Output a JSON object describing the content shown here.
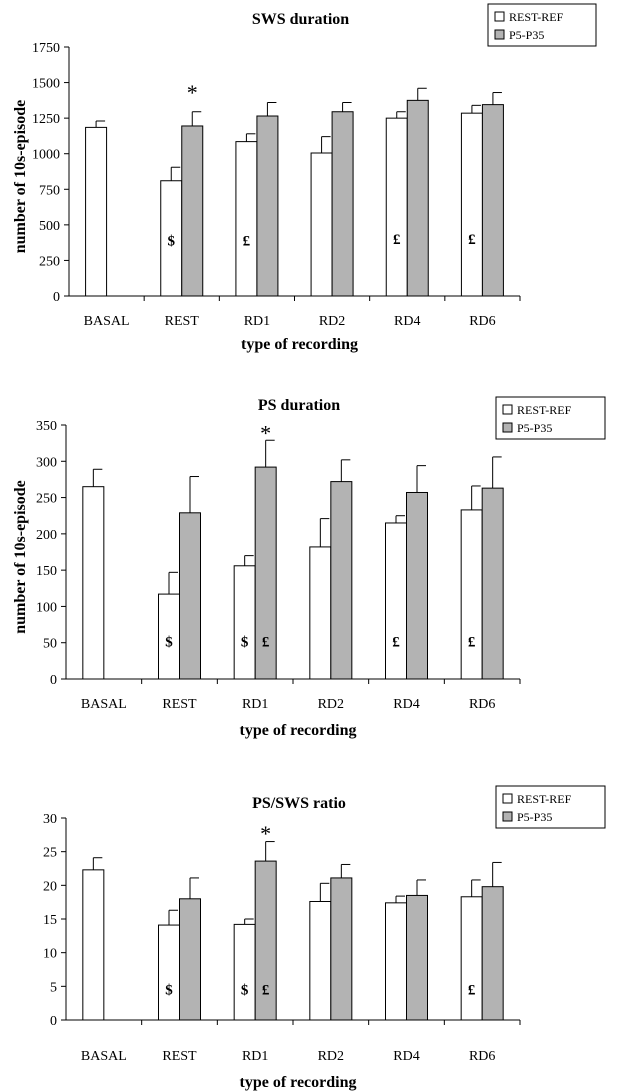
{
  "chart_data": [
    {
      "type": "bar",
      "title": "SWS duration",
      "xlabel": "type of recording",
      "ylabel": "number of 10s-episode",
      "ylim": [
        0,
        1750
      ],
      "yticks": [
        0,
        250,
        500,
        750,
        1000,
        1250,
        1500,
        1750
      ],
      "categories": [
        "BASAL",
        "REST",
        "RD1",
        "RD2",
        "RD4",
        "RD6"
      ],
      "legend_position": "top-right",
      "grid": false,
      "series": [
        {
          "name": "REST-REF",
          "color": "#ffffff",
          "values": [
            1185,
            810,
            1085,
            1005,
            1250,
            1285
          ],
          "errors": [
            45,
            95,
            55,
            115,
            45,
            55
          ]
        },
        {
          "name": "P5-P35",
          "color": "#b3b3b3",
          "values": [
            null,
            1195,
            1265,
            1295,
            1375,
            1345
          ],
          "errors": [
            null,
            100,
            95,
            65,
            85,
            85
          ]
        }
      ],
      "annotations": [
        {
          "category": "REST",
          "series": "REST-REF",
          "text": "$",
          "at": 390
        },
        {
          "category": "RD1",
          "series": "REST-REF",
          "text": "£",
          "at": 390
        },
        {
          "category": "RD4",
          "series": "REST-REF",
          "text": "£",
          "at": 400
        },
        {
          "category": "RD6",
          "series": "REST-REF",
          "text": "£",
          "at": 400
        },
        {
          "category": "REST",
          "series": "P5-P35",
          "text": "*",
          "at": 1420
        }
      ]
    },
    {
      "type": "bar",
      "title": "PS duration",
      "xlabel": "type of recording",
      "ylabel": "number of 10s-episode",
      "ylim": [
        0,
        350
      ],
      "yticks": [
        0,
        50,
        100,
        150,
        200,
        250,
        300,
        350
      ],
      "categories": [
        "BASAL",
        "REST",
        "RD1",
        "RD2",
        "RD4",
        "RD6"
      ],
      "legend_position": "top-right",
      "grid": false,
      "series": [
        {
          "name": "REST-REF",
          "color": "#ffffff",
          "values": [
            265,
            117,
            156,
            182,
            215,
            233
          ],
          "errors": [
            24,
            30,
            14,
            39,
            10,
            33
          ]
        },
        {
          "name": "P5-P35",
          "color": "#b3b3b3",
          "values": [
            null,
            229,
            292,
            272,
            257,
            263
          ],
          "errors": [
            null,
            50,
            37,
            30,
            37,
            43
          ]
        }
      ],
      "annotations": [
        {
          "category": "REST",
          "series": "REST-REF",
          "text": "$",
          "at": 52
        },
        {
          "category": "RD1",
          "series": "REST-REF",
          "text": "$",
          "at": 52
        },
        {
          "category": "RD1",
          "series": "P5-P35",
          "text": "£",
          "at": 52
        },
        {
          "category": "RD4",
          "series": "REST-REF",
          "text": "£",
          "at": 52
        },
        {
          "category": "RD6",
          "series": "REST-REF",
          "text": "£",
          "at": 52
        },
        {
          "category": "RD1",
          "series": "P5-P35",
          "text": "*",
          "at": 337
        }
      ]
    },
    {
      "type": "bar",
      "title": "PS/SWS ratio",
      "xlabel": "type of recording",
      "ylabel": "",
      "ylim": [
        0,
        30
      ],
      "yticks": [
        0,
        5,
        10,
        15,
        20,
        25,
        30
      ],
      "categories": [
        "BASAL",
        "REST",
        "RD1",
        "RD2",
        "RD4",
        "RD6"
      ],
      "legend_position": "top-right",
      "grid": false,
      "series": [
        {
          "name": "REST-REF",
          "color": "#ffffff",
          "values": [
            22.3,
            14.1,
            14.2,
            17.6,
            17.4,
            18.3
          ],
          "errors": [
            1.8,
            2.2,
            0.8,
            2.7,
            1.0,
            2.5
          ]
        },
        {
          "name": "P5-P35",
          "color": "#b3b3b3",
          "values": [
            null,
            18.0,
            23.6,
            21.1,
            18.5,
            19.8
          ],
          "errors": [
            null,
            3.1,
            2.9,
            2.0,
            2.3,
            3.6
          ]
        }
      ],
      "annotations": [
        {
          "category": "REST",
          "series": "REST-REF",
          "text": "$",
          "at": 4.5
        },
        {
          "category": "RD1",
          "series": "REST-REF",
          "text": "$",
          "at": 4.5
        },
        {
          "category": "RD1",
          "series": "P5-P35",
          "text": "£",
          "at": 4.5
        },
        {
          "category": "RD6",
          "series": "REST-REF",
          "text": "£",
          "at": 4.5
        },
        {
          "category": "RD1",
          "series": "P5-P35",
          "text": "*",
          "at": 27.5
        }
      ]
    }
  ]
}
